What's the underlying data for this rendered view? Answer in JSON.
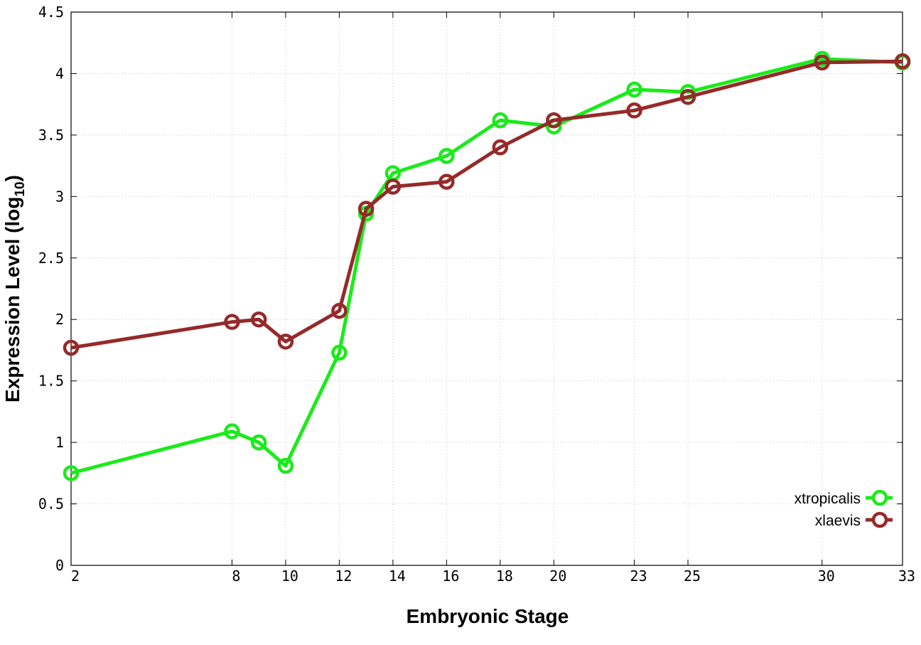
{
  "chart_data": {
    "type": "line",
    "title": "",
    "xlabel": "Embryonic Stage",
    "ylabel_main": "Expression Level (log",
    "ylabel_sub": "10",
    "ylabel_close": ")",
    "x": [
      2,
      8,
      9,
      10,
      12,
      13,
      14,
      16,
      18,
      20,
      23,
      25,
      30,
      33
    ],
    "x_tick_labels": [
      "2",
      "8",
      "10",
      "12",
      "14",
      "16",
      "18",
      "20",
      "23",
      "25",
      "30",
      "33"
    ],
    "x_tick_values": [
      2,
      8,
      10,
      12,
      14,
      16,
      18,
      20,
      23,
      25,
      30,
      33
    ],
    "xlim": [
      2,
      33
    ],
    "y_tick_labels": [
      "0",
      "0.5",
      "1",
      "1.5",
      "2",
      "2.5",
      "3",
      "3.5",
      "4",
      "4.5"
    ],
    "y_tick_values": [
      0,
      0.5,
      1,
      1.5,
      2,
      2.5,
      3,
      3.5,
      4,
      4.5
    ],
    "ylim": [
      0,
      4.5
    ],
    "grid": true,
    "legend_position": "bottom-right",
    "series": [
      {
        "name": "xtropicalis",
        "color": "#1aeb1a",
        "values": [
          0.75,
          1.09,
          1.0,
          0.81,
          1.73,
          2.86,
          3.19,
          3.33,
          3.62,
          3.57,
          3.87,
          3.85,
          4.12,
          4.09
        ]
      },
      {
        "name": "xlaevis",
        "color": "#952a2a",
        "values": [
          1.77,
          1.98,
          2.0,
          1.82,
          2.07,
          2.9,
          3.08,
          3.12,
          3.4,
          3.62,
          3.7,
          3.81,
          4.09,
          4.1
        ]
      }
    ]
  }
}
